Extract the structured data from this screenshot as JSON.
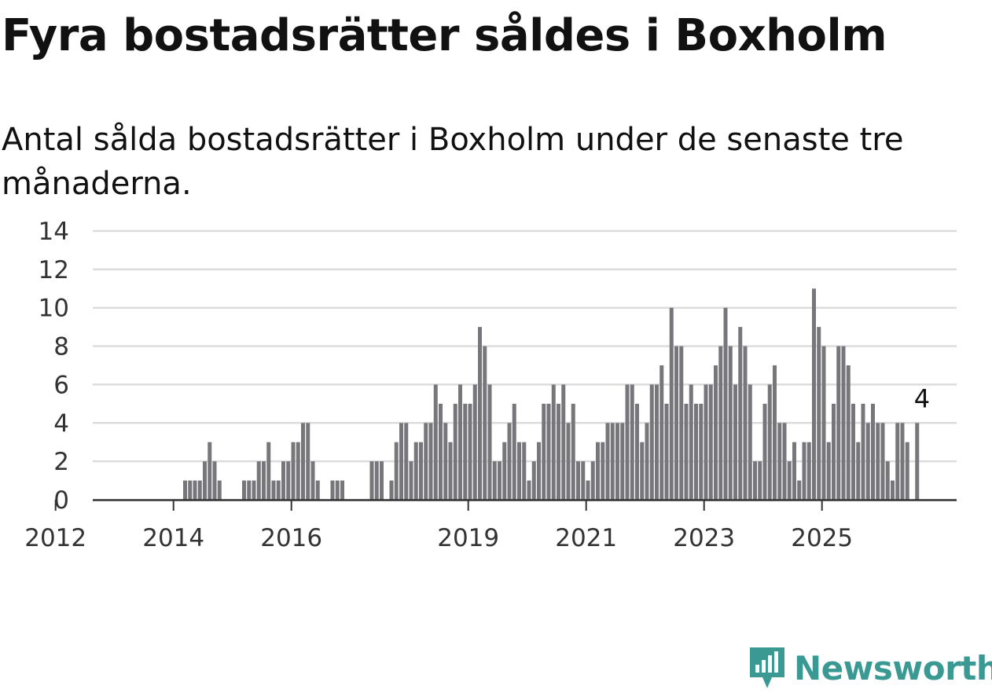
{
  "headline": "Fyra bostadsrätter såldes i Boxholm",
  "subtitle": "Antal sålda bostadsrätter i Boxholm under de senaste tre månaderna.",
  "brand": {
    "name": "Newsworthy",
    "color": "#3a9a93",
    "icon": "bar-chart-bubble-icon"
  },
  "chart_data": {
    "type": "bar",
    "title": "Fyra bostadsrätter såldes i Boxholm",
    "subtitle": "Antal sålda bostadsrätter i Boxholm under de senaste tre månaderna.",
    "ylim": [
      0,
      14
    ],
    "yticks": [
      0,
      2,
      4,
      6,
      8,
      10,
      12,
      14
    ],
    "xticks": [
      "2012",
      "2014",
      "2016",
      "2019",
      "2021",
      "2023",
      "2025"
    ],
    "grid": true,
    "bar_color": "#77767b",
    "highlight_color": "#26a39b",
    "annotation": {
      "label": "4",
      "value": 4,
      "index": 168
    },
    "values": [
      0,
      0,
      0,
      0,
      0,
      0,
      0,
      0,
      0,
      0,
      0,
      0,
      0,
      0,
      0,
      0,
      0,
      0,
      1,
      1,
      1,
      1,
      2,
      3,
      2,
      1,
      0,
      0,
      0,
      0,
      1,
      1,
      1,
      2,
      2,
      3,
      1,
      1,
      2,
      2,
      3,
      3,
      4,
      4,
      2,
      1,
      0,
      0,
      1,
      1,
      1,
      0,
      0,
      0,
      0,
      0,
      2,
      2,
      2,
      0,
      1,
      3,
      4,
      4,
      2,
      3,
      3,
      4,
      4,
      6,
      5,
      4,
      3,
      5,
      6,
      5,
      5,
      6,
      9,
      8,
      6,
      2,
      2,
      3,
      4,
      5,
      3,
      3,
      1,
      2,
      3,
      5,
      5,
      6,
      5,
      6,
      4,
      5,
      2,
      2,
      1,
      2,
      3,
      3,
      4,
      4,
      4,
      4,
      6,
      6,
      5,
      3,
      4,
      6,
      6,
      7,
      5,
      10,
      8,
      8,
      5,
      6,
      5,
      5,
      6,
      6,
      7,
      8,
      10,
      8,
      6,
      9,
      8,
      6,
      2,
      2,
      5,
      6,
      7,
      4,
      4,
      2,
      3,
      1,
      3,
      3,
      11,
      9,
      8,
      3,
      5,
      8,
      8,
      7,
      5,
      3,
      5,
      4,
      5,
      4,
      4,
      2,
      1,
      4,
      4,
      3,
      0,
      4
    ]
  }
}
